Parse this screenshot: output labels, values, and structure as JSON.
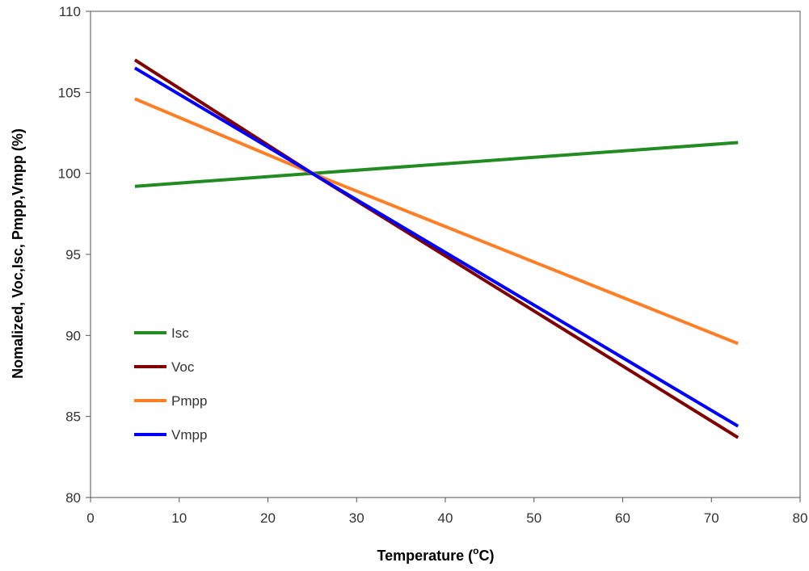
{
  "chart_data": {
    "type": "line",
    "title": "",
    "xlabel": "Temperature (",
    "xlabel_sup": "o",
    "xlabel_tail": "C)",
    "ylabel": "Nomalized, Voc,Isc, Pmpp,Vmpp (%)",
    "xlim": [
      0,
      80
    ],
    "ylim": [
      80,
      110
    ],
    "x_ticks": [
      0,
      10,
      20,
      30,
      40,
      50,
      60,
      70,
      80
    ],
    "y_ticks": [
      80,
      85,
      90,
      95,
      100,
      105,
      110
    ],
    "grid": false,
    "legend_position": "left",
    "series": [
      {
        "name": "Isc",
        "color": "#228B22",
        "x": [
          5,
          25,
          73
        ],
        "y": [
          99.2,
          100.0,
          101.9
        ]
      },
      {
        "name": "Voc",
        "color": "#800000",
        "x": [
          5,
          25,
          73
        ],
        "y": [
          107.0,
          100.0,
          83.7
        ]
      },
      {
        "name": "Pmpp",
        "color": "#FF7F27",
        "x": [
          5,
          25,
          73
        ],
        "y": [
          104.6,
          100.0,
          89.5
        ]
      },
      {
        "name": "Vmpp",
        "color": "#0000FF",
        "x": [
          5,
          25,
          73
        ],
        "y": [
          106.5,
          100.0,
          84.4
        ]
      }
    ]
  }
}
